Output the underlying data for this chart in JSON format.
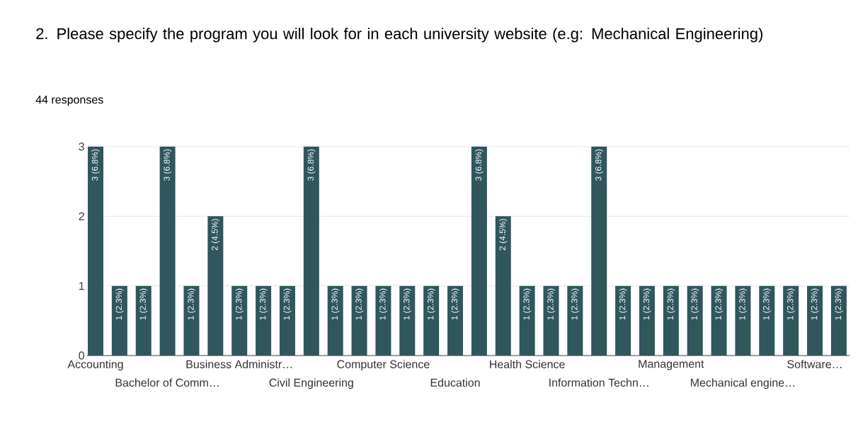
{
  "chart_data": {
    "type": "bar",
    "title": "2. Please specify the program you will look for in each university website (e.g: Mechanical Engineering)",
    "subtitle": "44 responses",
    "categories": [
      "Accounting",
      null,
      null,
      "Bachelor of Comm…",
      null,
      null,
      "Business Administr…",
      null,
      null,
      "Civil Engineering",
      null,
      null,
      "Computer Science",
      null,
      null,
      "Education",
      null,
      null,
      "Health Science",
      null,
      null,
      "Information Techn…",
      null,
      null,
      "Management",
      null,
      null,
      "Mechanical engine…",
      null,
      null,
      "Software…",
      null
    ],
    "values": [
      3,
      1,
      1,
      3,
      1,
      2,
      1,
      1,
      1,
      3,
      1,
      1,
      1,
      1,
      1,
      1,
      3,
      2,
      1,
      1,
      1,
      3,
      1,
      1,
      1,
      1,
      1,
      1,
      1,
      1,
      1,
      1
    ],
    "value_labels": [
      "3 (6.8%)",
      "1 (2.3%)",
      "1 (2.3%)",
      "3 (6.8%)",
      "1 (2.3%)",
      "2 (4.5%)",
      "1 (2.3%)",
      "1 (2.3%)",
      "1 (2.3%)",
      "3 (6.8%)",
      "1 (2.3%)",
      "1 (2.3%)",
      "1 (2.3%)",
      "1 (2.3%)",
      "1 (2.3%)",
      "1 (2.3%)",
      "3 (6.8%)",
      "2 (4.5%)",
      "1 (2.3%)",
      "1 (2.3%)",
      "1 (2.3%)",
      "3 (6.8%)",
      "1 (2.3%)",
      "1 (2.3%)",
      "1 (2.3%)",
      "1 (2.3%)",
      "1 (2.3%)",
      "1 (2.3%)",
      "1 (2.3%)",
      "1 (2.3%)",
      "1 (2.3%)",
      "1 (2.3%)"
    ],
    "color": "#2f575d",
    "ylim": [
      0,
      3
    ],
    "yticks": [
      0,
      1,
      2,
      3
    ],
    "grid": "y"
  }
}
